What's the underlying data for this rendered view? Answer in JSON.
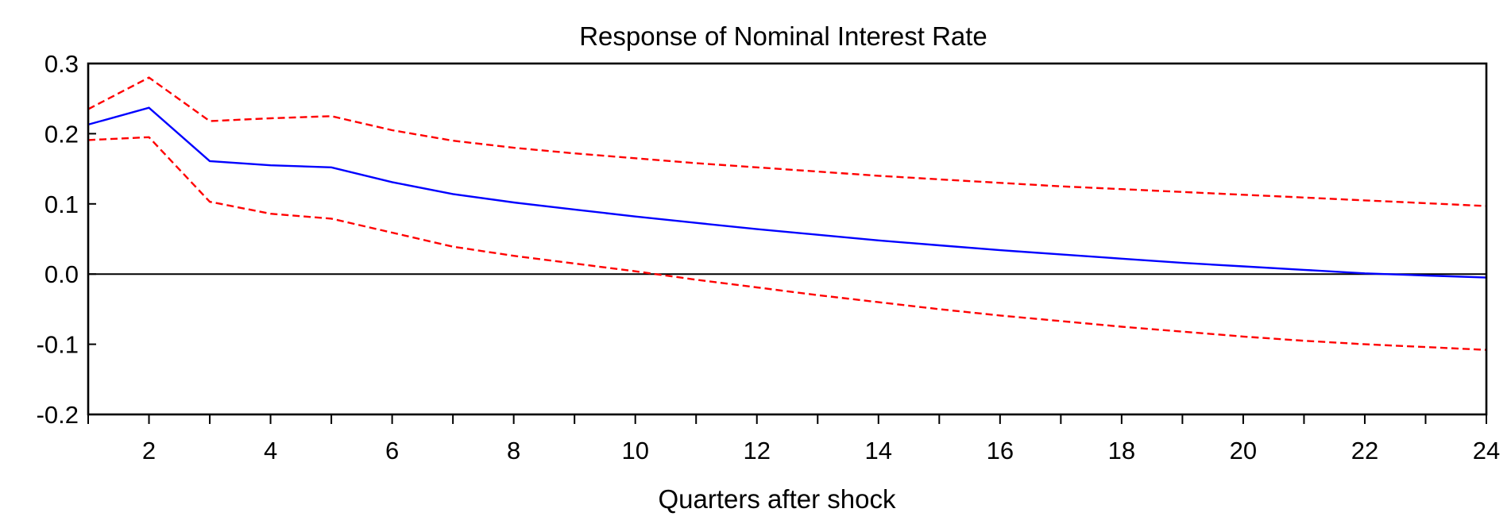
{
  "chart_data": {
    "type": "line",
    "title": "Response of Nominal Interest Rate",
    "xlabel": "Quarters after shock",
    "ylabel": "",
    "xlim": [
      1,
      24
    ],
    "ylim": [
      -0.2,
      0.3
    ],
    "x_tick_labels": [
      "2",
      "4",
      "6",
      "8",
      "10",
      "12",
      "14",
      "16",
      "18",
      "20",
      "22",
      "24"
    ],
    "y_tick_labels": [
      "0.3",
      "0.2",
      "0.1",
      "0.0",
      "-0.1",
      "-0.2"
    ],
    "x": [
      1,
      2,
      3,
      4,
      5,
      6,
      7,
      8,
      9,
      10,
      11,
      12,
      13,
      14,
      15,
      16,
      17,
      18,
      19,
      20,
      21,
      22,
      23,
      24
    ],
    "zero_line": true,
    "grid": false,
    "legend": "none",
    "series": [
      {
        "role": "upper-band",
        "style": "dashed",
        "color": "#ff0000",
        "values": [
          0.235,
          0.28,
          0.218,
          0.222,
          0.225,
          0.205,
          0.19,
          0.18,
          0.172,
          0.165,
          0.158,
          0.152,
          0.146,
          0.14,
          0.135,
          0.13,
          0.125,
          0.121,
          0.117,
          0.113,
          0.109,
          0.105,
          0.101,
          0.097
        ]
      },
      {
        "role": "point-estimate",
        "style": "solid",
        "color": "#0000ff",
        "values": [
          0.213,
          0.237,
          0.161,
          0.155,
          0.152,
          0.131,
          0.114,
          0.102,
          0.092,
          0.082,
          0.073,
          0.064,
          0.056,
          0.048,
          0.041,
          0.034,
          0.028,
          0.022,
          0.016,
          0.011,
          0.006,
          0.001,
          -0.002,
          -0.005
        ]
      },
      {
        "role": "lower-band",
        "style": "dashed",
        "color": "#ff0000",
        "values": [
          0.191,
          0.195,
          0.103,
          0.086,
          0.079,
          0.059,
          0.039,
          0.026,
          0.015,
          0.004,
          -0.008,
          -0.019,
          -0.03,
          -0.04,
          -0.05,
          -0.059,
          -0.067,
          -0.075,
          -0.082,
          -0.089,
          -0.095,
          -0.1,
          -0.104,
          -0.108
        ]
      }
    ]
  }
}
